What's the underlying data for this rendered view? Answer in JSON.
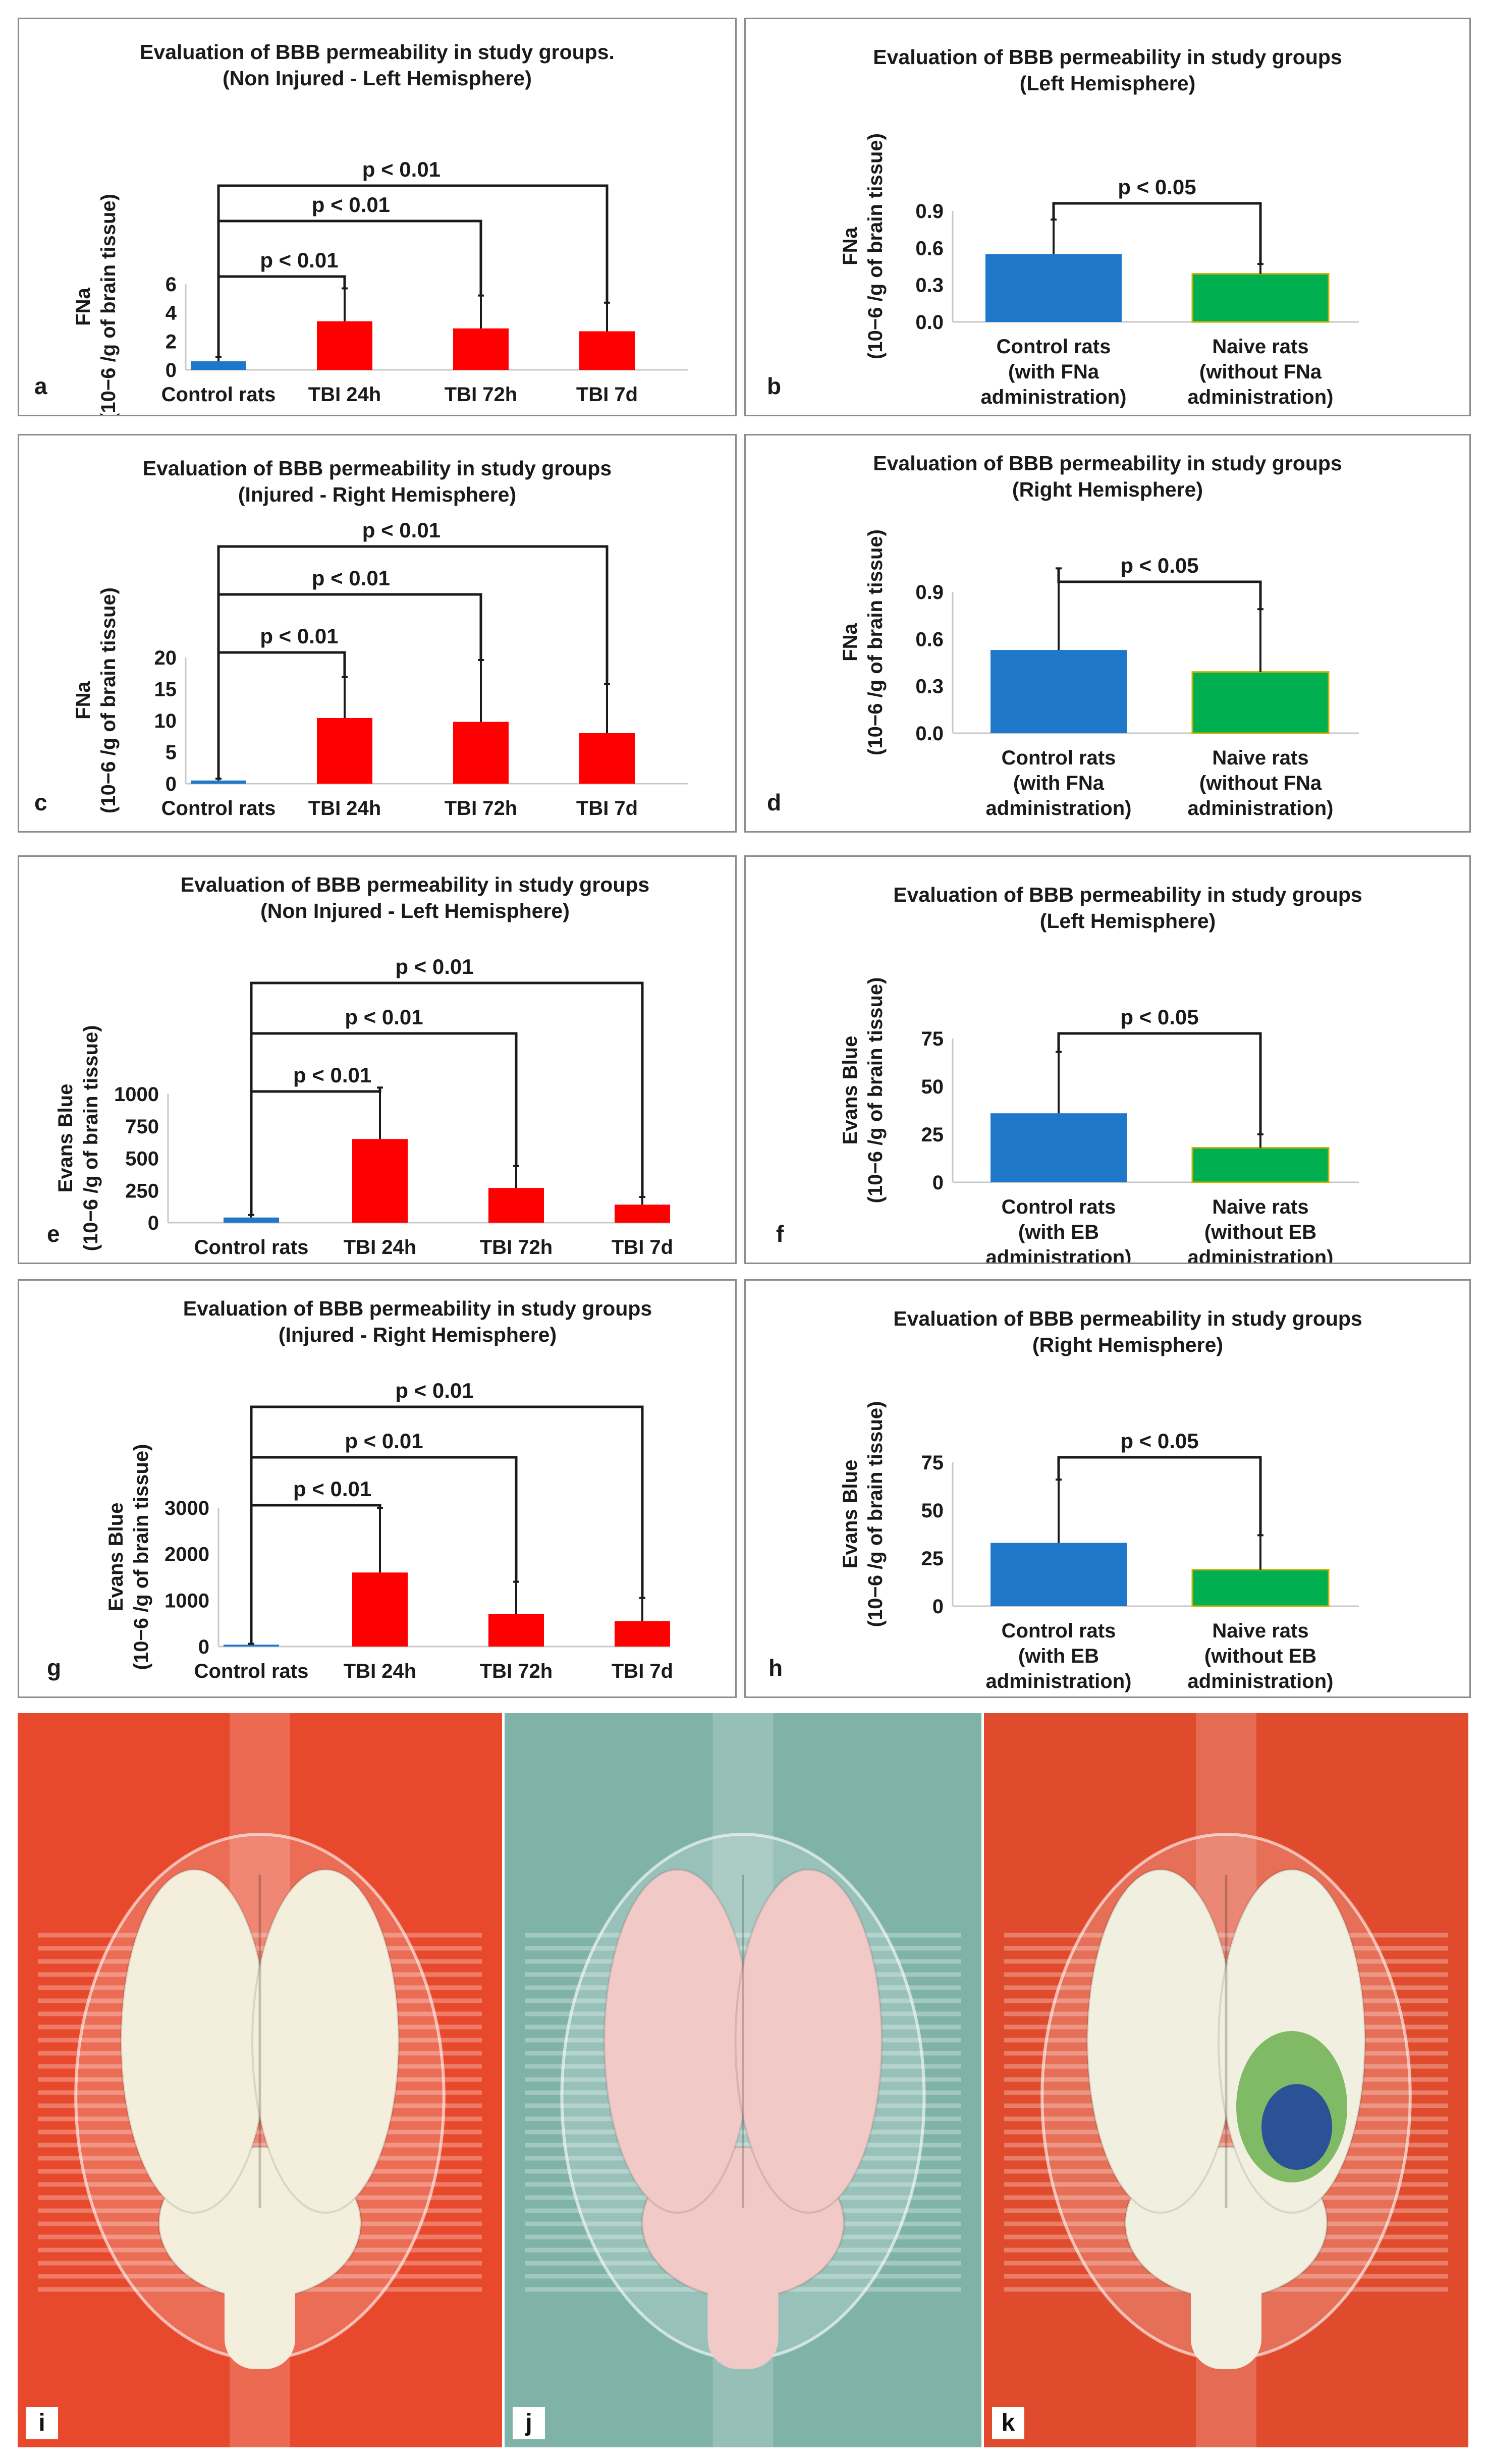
{
  "chart_data": [
    {
      "panel": "a",
      "type": "bar",
      "title": [
        "Evaluation of BBB permeability in study groups.",
        "(Non Injured - Left Hemisphere)"
      ],
      "ylabel": [
        "FNa",
        "(10−6 /g of brain tissue)"
      ],
      "categories": [
        "Control rats",
        "TBI  24h",
        "TBI 72h",
        "TBI 7d"
      ],
      "values": [
        0.6,
        3.4,
        2.9,
        2.7
      ],
      "errors": [
        0.3,
        2.3,
        2.3,
        2.0
      ],
      "colors": [
        "#1f77c9",
        "#ff0000",
        "#ff0000",
        "#ff0000"
      ],
      "yticks": [
        "0",
        "2",
        "4",
        "6"
      ],
      "ylim": [
        0,
        6
      ],
      "annotations": [
        "p < 0.01",
        "p < 0.01",
        "p < 0.01"
      ]
    },
    {
      "panel": "b",
      "type": "bar",
      "title": [
        "Evaluation of BBB permeability in study groups",
        "(Left Hemisphere)"
      ],
      "ylabel": [
        "FNa",
        "(10−6 /g of brain tissue)"
      ],
      "categories": [
        [
          "Control rats",
          "(with  FNa",
          "administration)"
        ],
        [
          "Naive rats",
          "(without  FNa",
          "administration)"
        ]
      ],
      "values": [
        0.55,
        0.39
      ],
      "errors": [
        0.28,
        0.08
      ],
      "colors": [
        "#1f77c9",
        "#00b050"
      ],
      "yticks": [
        "0.0",
        "0.3",
        "0.6",
        "0.9"
      ],
      "ylim": [
        0,
        0.9
      ],
      "annotations": [
        "p < 0.05"
      ]
    },
    {
      "panel": "c",
      "type": "bar",
      "title": [
        "Evaluation of BBB permeability in study groups",
        "(Injured - Right Hemisphere)"
      ],
      "ylabel": [
        "FNa",
        "(10−6 /g of brain tissue)"
      ],
      "categories": [
        "Control rats",
        "TBI  24h",
        "TBI 72h",
        "TBI 7d"
      ],
      "values": [
        0.5,
        10.4,
        9.8,
        8.0
      ],
      "errors": [
        0.3,
        6.5,
        9.8,
        7.8
      ],
      "colors": [
        "#1f77c9",
        "#ff0000",
        "#ff0000",
        "#ff0000"
      ],
      "yticks": [
        "0",
        "5",
        "10",
        "15",
        "20"
      ],
      "ylim": [
        0,
        20
      ],
      "annotations": [
        "p < 0.01",
        "p < 0.01",
        "p < 0.01"
      ]
    },
    {
      "panel": "d",
      "type": "bar",
      "title": [
        "Evaluation of BBB permeability in study groups",
        "(Right Hemisphere)"
      ],
      "ylabel": [
        "FNa",
        "(10−6 /g of brain tissue)"
      ],
      "categories": [
        [
          "Control rats",
          "(with  FNa",
          "administration)"
        ],
        [
          "Naive rats",
          "(without  FNa",
          "administration)"
        ]
      ],
      "values": [
        0.53,
        0.39
      ],
      "errors": [
        0.52,
        0.4
      ],
      "colors": [
        "#1f77c9",
        "#00b050"
      ],
      "yticks": [
        "0.0",
        "0.3",
        "0.6",
        "0.9"
      ],
      "ylim": [
        0,
        0.9
      ],
      "annotations": [
        "p < 0.05"
      ]
    },
    {
      "panel": "e",
      "type": "bar",
      "title": [
        "Evaluation of BBB permeability in study groups",
        "(Non Injured - Left Hemisphere)"
      ],
      "ylabel": [
        "Evans Blue",
        "(10−6 /g of brain tissue)"
      ],
      "categories": [
        "Control rats",
        "TBI  24h",
        "TBI 72h",
        "TBI 7d"
      ],
      "values": [
        40,
        650,
        270,
        140
      ],
      "errors": [
        20,
        400,
        170,
        60
      ],
      "colors": [
        "#1f77c9",
        "#ff0000",
        "#ff0000",
        "#ff0000"
      ],
      "yticks": [
        "0",
        "250",
        "500",
        "750",
        "1000"
      ],
      "ylim": [
        0,
        1000
      ],
      "annotations": [
        "p < 0.01",
        "p < 0.01",
        "p < 0.01"
      ]
    },
    {
      "panel": "f",
      "type": "bar",
      "title": [
        "Evaluation of BBB permeability in study groups",
        "(Left Hemisphere)"
      ],
      "ylabel": [
        "Evans Blue",
        "(10−6 /g of brain tissue)"
      ],
      "categories": [
        [
          "Control rats",
          "(with EB",
          "administration)"
        ],
        [
          "Naive rats",
          "(without EB",
          "administration)"
        ]
      ],
      "values": [
        36,
        18
      ],
      "errors": [
        32,
        7
      ],
      "colors": [
        "#1f77c9",
        "#00b050"
      ],
      "yticks": [
        "0",
        "25",
        "50",
        "75"
      ],
      "ylim": [
        0,
        75
      ],
      "annotations": [
        "p < 0.05"
      ]
    },
    {
      "panel": "g",
      "type": "bar",
      "title": [
        "Evaluation of BBB permeability in study groups",
        "(Injured - Right Hemisphere)"
      ],
      "ylabel": [
        "Evans Blue",
        "(10−6 /g of brain tissue)"
      ],
      "categories": [
        "Control rats",
        "TBI  24h",
        "TBI 72h",
        "TBI 7d"
      ],
      "values": [
        40,
        1600,
        700,
        550
      ],
      "errors": [
        20,
        1400,
        700,
        500
      ],
      "colors": [
        "#1f77c9",
        "#ff0000",
        "#ff0000",
        "#ff0000"
      ],
      "yticks": [
        "0",
        "1000",
        "2000",
        "3000"
      ],
      "ylim": [
        0,
        3000
      ],
      "annotations": [
        "p < 0.01",
        "p < 0.01",
        "p < 0.01"
      ]
    },
    {
      "panel": "h",
      "type": "bar",
      "title": [
        "Evaluation of BBB permeability in study groups",
        "(Right Hemisphere)"
      ],
      "ylabel": [
        "Evans Blue",
        "(10−6 /g of brain tissue)"
      ],
      "categories": [
        [
          "Control rats",
          "(with EB",
          "administration)"
        ],
        [
          "Naive rats",
          "(without EB",
          "administration)"
        ]
      ],
      "values": [
        33,
        19
      ],
      "errors": [
        33,
        18
      ],
      "colors": [
        "#1f77c9",
        "#00b050"
      ],
      "yticks": [
        "0",
        "25",
        "50",
        "75"
      ],
      "ylim": [
        0,
        75
      ],
      "annotations": [
        "p < 0.05"
      ]
    }
  ],
  "photos": [
    {
      "label": "i",
      "background": "#e8492c",
      "brain_color": "#f3efdc",
      "stain": false
    },
    {
      "label": "j",
      "background": "#7fb3a8",
      "brain_color": "#f1c9c6",
      "stain": false
    },
    {
      "label": "k",
      "background": "#e04b2e",
      "brain_color": "#f1efe0",
      "stain": true
    }
  ]
}
